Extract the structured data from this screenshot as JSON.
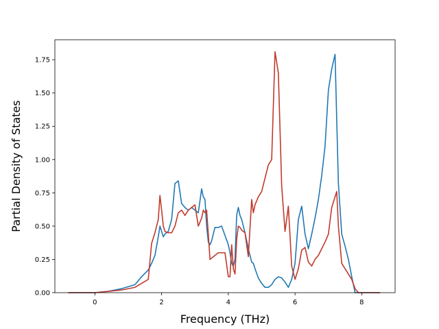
{
  "chart_data": {
    "type": "line",
    "title": "",
    "xlabel": "Frequency (THz)",
    "ylabel": "Partial Density of States",
    "xlim": [
      -1.2,
      9.0
    ],
    "ylim": [
      0.0,
      1.9
    ],
    "xticks": [
      0,
      2,
      4,
      6,
      8
    ],
    "yticks": [
      0.0,
      0.25,
      0.5,
      0.75,
      1.0,
      1.25,
      1.5,
      1.75
    ],
    "xtick_labels": [
      "0",
      "2",
      "4",
      "6",
      "8"
    ],
    "ytick_labels": [
      "0.00",
      "0.25",
      "0.50",
      "0.75",
      "1.00",
      "1.25",
      "1.50",
      "1.75"
    ],
    "grid": false,
    "legend": null,
    "series": [
      {
        "color": "#1f77b4",
        "x": [
          -0.8,
          0.0,
          0.4,
          0.8,
          1.2,
          1.4,
          1.6,
          1.7,
          1.8,
          1.9,
          1.95,
          2.0,
          2.05,
          2.1,
          2.2,
          2.3,
          2.4,
          2.5,
          2.6,
          2.7,
          2.8,
          2.9,
          3.0,
          3.1,
          3.2,
          3.25,
          3.3,
          3.35,
          3.4,
          3.45,
          3.5,
          3.6,
          3.7,
          3.8,
          3.9,
          4.0,
          4.05,
          4.1,
          4.15,
          4.2,
          4.25,
          4.3,
          4.35,
          4.4,
          4.5,
          4.6,
          4.7,
          4.75,
          4.8,
          4.9,
          5.0,
          5.1,
          5.2,
          5.3,
          5.4,
          5.5,
          5.6,
          5.7,
          5.8,
          5.9,
          6.0,
          6.1,
          6.2,
          6.3,
          6.4,
          6.5,
          6.6,
          6.7,
          6.8,
          6.9,
          7.0,
          7.1,
          7.2,
          7.25,
          7.3,
          7.4,
          7.5,
          7.6,
          7.7,
          7.8,
          7.9,
          8.0,
          8.2,
          8.55
        ],
        "y": [
          0.0,
          0.0,
          0.01,
          0.03,
          0.06,
          0.12,
          0.17,
          0.22,
          0.28,
          0.42,
          0.5,
          0.46,
          0.42,
          0.44,
          0.46,
          0.55,
          0.82,
          0.84,
          0.67,
          0.64,
          0.62,
          0.64,
          0.62,
          0.6,
          0.78,
          0.72,
          0.7,
          0.5,
          0.38,
          0.36,
          0.39,
          0.49,
          0.49,
          0.5,
          0.43,
          0.36,
          0.3,
          0.22,
          0.2,
          0.25,
          0.58,
          0.64,
          0.58,
          0.55,
          0.45,
          0.33,
          0.23,
          0.22,
          0.18,
          0.11,
          0.07,
          0.04,
          0.04,
          0.06,
          0.1,
          0.12,
          0.11,
          0.08,
          0.04,
          0.1,
          0.22,
          0.55,
          0.65,
          0.44,
          0.33,
          0.44,
          0.56,
          0.7,
          0.88,
          1.1,
          1.52,
          1.68,
          1.79,
          1.3,
          0.82,
          0.44,
          0.35,
          0.25,
          0.12,
          0.0,
          0.0,
          0.0,
          0.0,
          0.0
        ]
      },
      {
        "color": "#c0392b",
        "x": [
          -0.8,
          0.0,
          0.4,
          0.8,
          1.2,
          1.4,
          1.6,
          1.7,
          1.8,
          1.9,
          1.95,
          2.0,
          2.05,
          2.1,
          2.2,
          2.3,
          2.4,
          2.5,
          2.6,
          2.7,
          2.8,
          2.9,
          3.0,
          3.1,
          3.2,
          3.25,
          3.3,
          3.35,
          3.4,
          3.45,
          3.5,
          3.6,
          3.7,
          3.8,
          3.9,
          4.0,
          4.05,
          4.1,
          4.15,
          4.2,
          4.25,
          4.3,
          4.35,
          4.4,
          4.5,
          4.6,
          4.7,
          4.75,
          4.8,
          4.9,
          5.0,
          5.1,
          5.2,
          5.3,
          5.4,
          5.5,
          5.6,
          5.7,
          5.8,
          5.9,
          6.0,
          6.1,
          6.2,
          6.3,
          6.4,
          6.5,
          6.6,
          6.7,
          6.8,
          6.9,
          7.0,
          7.1,
          7.2,
          7.25,
          7.3,
          7.4,
          7.5,
          7.6,
          7.7,
          7.8,
          7.9,
          8.0,
          8.2,
          8.55
        ],
        "y": [
          0.0,
          0.0,
          0.01,
          0.02,
          0.04,
          0.07,
          0.1,
          0.37,
          0.45,
          0.55,
          0.73,
          0.62,
          0.5,
          0.46,
          0.45,
          0.45,
          0.5,
          0.6,
          0.62,
          0.58,
          0.62,
          0.64,
          0.66,
          0.5,
          0.56,
          0.62,
          0.6,
          0.62,
          0.44,
          0.25,
          0.26,
          0.28,
          0.3,
          0.3,
          0.3,
          0.12,
          0.12,
          0.36,
          0.18,
          0.14,
          0.4,
          0.5,
          0.49,
          0.47,
          0.45,
          0.27,
          0.7,
          0.6,
          0.66,
          0.72,
          0.76,
          0.86,
          0.96,
          1.0,
          1.81,
          1.65,
          0.8,
          0.46,
          0.65,
          0.2,
          0.1,
          0.18,
          0.32,
          0.34,
          0.23,
          0.2,
          0.25,
          0.28,
          0.33,
          0.38,
          0.44,
          0.64,
          0.72,
          0.76,
          0.5,
          0.22,
          0.18,
          0.14,
          0.1,
          0.03,
          0.0,
          0.0,
          0.0,
          0.0
        ]
      }
    ]
  }
}
